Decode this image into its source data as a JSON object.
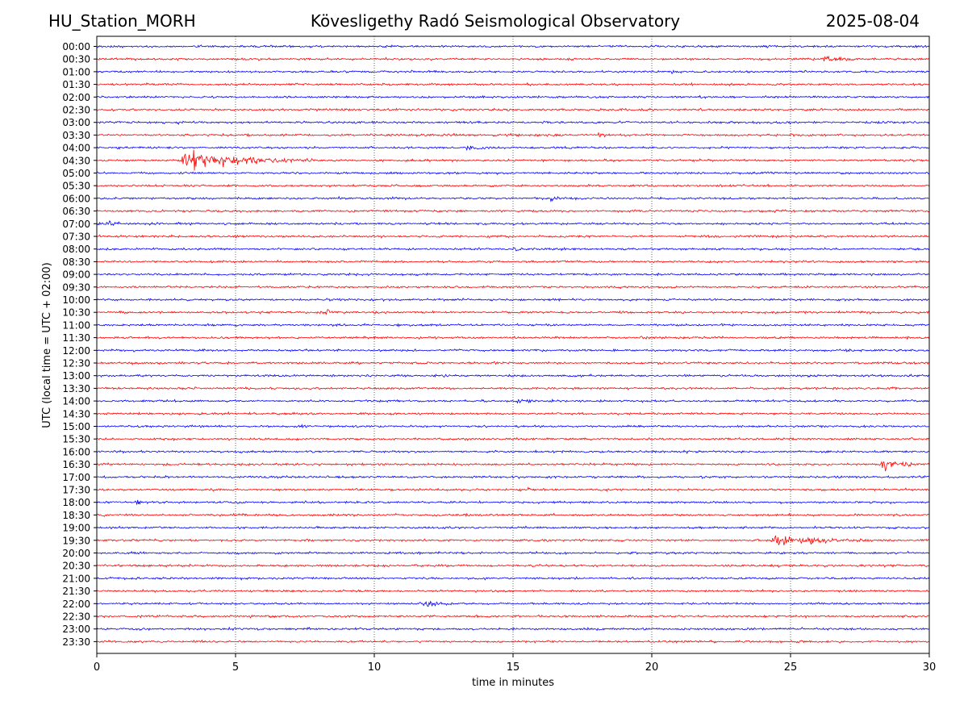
{
  "header": {
    "station": "HU_Station_MORH",
    "title": "Kövesligethy Radó Seismological Observatory",
    "date": "2025-08-04"
  },
  "chart_data": {
    "type": "line",
    "xlabel": "time in minutes",
    "ylabel": "UTC (local time = UTC + 02:00)",
    "xlim": [
      0,
      30
    ],
    "x_ticks": [
      0,
      5,
      10,
      15,
      20,
      25,
      30
    ],
    "x_gridlines": [
      5,
      10,
      15,
      20,
      25
    ],
    "grid": "vertical dotted",
    "colors": [
      "#0000ff",
      "#ff0000"
    ],
    "rows": [
      "00:00",
      "00:30",
      "01:00",
      "01:30",
      "02:00",
      "02:30",
      "03:00",
      "03:30",
      "04:00",
      "04:30",
      "05:00",
      "05:30",
      "06:00",
      "06:30",
      "07:00",
      "07:30",
      "08:00",
      "08:30",
      "09:00",
      "09:30",
      "10:00",
      "10:30",
      "11:00",
      "11:30",
      "12:00",
      "12:30",
      "13:00",
      "13:30",
      "14:00",
      "14:30",
      "15:00",
      "15:30",
      "16:00",
      "16:30",
      "17:00",
      "17:30",
      "18:00",
      "18:30",
      "19:00",
      "19:30",
      "20:00",
      "20:30",
      "21:00",
      "21:30",
      "22:00",
      "22:30",
      "23:00",
      "23:30"
    ],
    "events": [
      {
        "row": "00:30",
        "start": 26.1,
        "end": 27.5,
        "amp": 0.45
      },
      {
        "row": "01:00",
        "start": 20.5,
        "end": 22.0,
        "amp": 0.18
      },
      {
        "row": "03:00",
        "start": 2.8,
        "end": 3.6,
        "amp": 0.15
      },
      {
        "row": "03:30",
        "start": 18.0,
        "end": 19.0,
        "amp": 0.2
      },
      {
        "row": "04:00",
        "start": 13.3,
        "end": 14.3,
        "amp": 0.4
      },
      {
        "row": "04:30",
        "start": 2.9,
        "end": 8.0,
        "amp": 1.45
      },
      {
        "row": "06:00",
        "start": 16.3,
        "end": 17.3,
        "amp": 0.22
      },
      {
        "row": "07:00",
        "start": 0.4,
        "end": 1.3,
        "amp": 0.2
      },
      {
        "row": "08:00",
        "start": 15.0,
        "end": 15.8,
        "amp": 0.25
      },
      {
        "row": "10:30",
        "start": 8.2,
        "end": 9.5,
        "amp": 0.32
      },
      {
        "row": "11:30",
        "start": 19.5,
        "end": 20.6,
        "amp": 0.15
      },
      {
        "row": "14:00",
        "start": 15.1,
        "end": 16.2,
        "amp": 0.2
      },
      {
        "row": "16:30",
        "start": 28.2,
        "end": 30.0,
        "amp": 0.75
      },
      {
        "row": "17:30",
        "start": 15.5,
        "end": 16.2,
        "amp": 0.22
      },
      {
        "row": "18:00",
        "start": 1.4,
        "end": 1.9,
        "amp": 0.3
      },
      {
        "row": "19:30",
        "start": 24.2,
        "end": 28.5,
        "amp": 0.7
      },
      {
        "row": "22:00",
        "start": 11.6,
        "end": 13.0,
        "amp": 0.55
      }
    ]
  }
}
